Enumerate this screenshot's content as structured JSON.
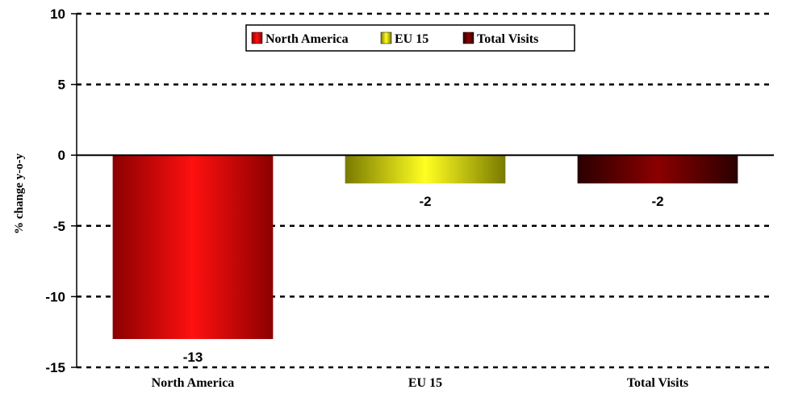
{
  "chart_data": {
    "type": "bar",
    "categories": [
      "North America",
      "EU 15",
      "Total Visits"
    ],
    "series": [
      {
        "name": "North America",
        "values": [
          -13,
          null,
          null
        ]
      },
      {
        "name": "EU 15",
        "values": [
          null,
          -2,
          null
        ]
      },
      {
        "name": "Total Visits",
        "values": [
          null,
          null,
          -2
        ]
      }
    ],
    "data_labels": [
      "-13",
      "-2",
      "-2"
    ],
    "xlabel": "",
    "ylabel": "% change y-o-y",
    "ylim": [
      -15,
      10
    ],
    "yticks": [
      10,
      5,
      0,
      -5,
      -10,
      -15
    ],
    "grid": true,
    "legend_position": "top-center",
    "colors": {
      "North America": {
        "edge": "#8b0000",
        "mid": "#ff1010"
      },
      "EU 15": {
        "edge": "#7a7a00",
        "mid": "#ffff22"
      },
      "Total Visits": {
        "edge": "#2a0000",
        "mid": "#8b0000"
      }
    }
  }
}
